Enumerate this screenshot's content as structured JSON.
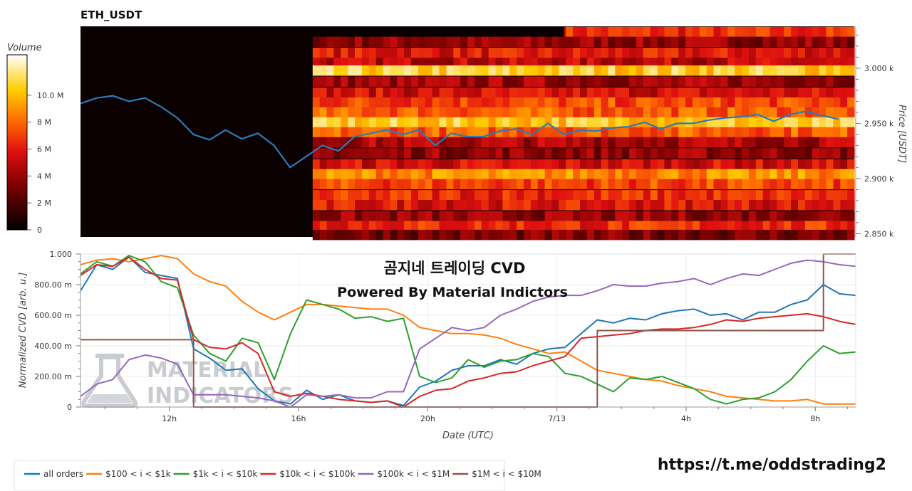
{
  "chart_data": [
    {
      "type": "heatmap",
      "title": "ETH_USDT",
      "ylabel": "Price [USDT]",
      "y_ticks": [
        {
          "value": 3000,
          "label": "3.000 k"
        },
        {
          "value": 2950,
          "label": "2.950 k"
        },
        {
          "value": 2900,
          "label": "2.900 k"
        },
        {
          "value": 2850,
          "label": "2.850 k"
        }
      ],
      "ylim": [
        2847,
        3038
      ],
      "colorbar": {
        "title": "Volume",
        "range": [
          0,
          13
        ],
        "ticks": [
          {
            "value": 0,
            "label": "0"
          },
          {
            "value": 2,
            "label": "2 M"
          },
          {
            "value": 4,
            "label": "4 M"
          },
          {
            "value": 6,
            "label": "6 M"
          },
          {
            "value": 8,
            "label": "8 M"
          },
          {
            "value": 10,
            "label": "10.0 M"
          }
        ]
      },
      "price_line": {
        "color": "#2b7bba",
        "x_hours": [
          0,
          0.5,
          1,
          1.5,
          2,
          2.5,
          3,
          3.5,
          4,
          4.5,
          5,
          5.5,
          6,
          6.5,
          7,
          7.5,
          8,
          8.5,
          9,
          9.5,
          10,
          10.5,
          11,
          11.5,
          12,
          12.5,
          13,
          13.5,
          14,
          14.5,
          15,
          15.5,
          16,
          16.5,
          17,
          17.5,
          18,
          18.5,
          19,
          19.5,
          20,
          20.5,
          21,
          21.5,
          22,
          22.5,
          23,
          23.5
        ],
        "y": [
          2968,
          2973,
          2975,
          2970,
          2973,
          2965,
          2955,
          2940,
          2935,
          2944,
          2936,
          2941,
          2930,
          2910,
          2920,
          2930,
          2925,
          2938,
          2941,
          2944,
          2940,
          2944,
          2930,
          2941,
          2938,
          2938,
          2943,
          2945,
          2940,
          2950,
          2940,
          2944,
          2943,
          2946,
          2947,
          2951,
          2945,
          2950,
          2950,
          2953,
          2955,
          2956,
          2958,
          2952,
          2958,
          2961,
          2957,
          2954
        ]
      },
      "book_levels": [
        {
          "price": 3033,
          "intensity": 0.5,
          "start_hour": 15
        },
        {
          "price": 3024,
          "intensity": 0.3,
          "start_hour": 7.2
        },
        {
          "price": 3014,
          "intensity": 0.45,
          "start_hour": 7.2
        },
        {
          "price": 3005,
          "intensity": 0.38,
          "start_hour": 7.2
        },
        {
          "price": 2998,
          "intensity": 0.82,
          "start_hour": 7.2
        },
        {
          "price": 2988,
          "intensity": 0.32,
          "start_hour": 7.2
        },
        {
          "price": 2978,
          "intensity": 0.42,
          "start_hour": 7.2
        },
        {
          "price": 2969,
          "intensity": 0.55,
          "start_hour": 7.2
        },
        {
          "price": 2960,
          "intensity": 0.6,
          "start_hour": 7.2
        },
        {
          "price": 2951,
          "intensity": 0.8,
          "start_hour": 7.2
        },
        {
          "price": 2942,
          "intensity": 0.6,
          "start_hour": 7.2
        },
        {
          "price": 2933,
          "intensity": 0.35,
          "start_hour": 7.2
        },
        {
          "price": 2923,
          "intensity": 0.3,
          "start_hour": 7.2
        },
        {
          "price": 2913,
          "intensity": 0.42,
          "start_hour": 7.2
        },
        {
          "price": 2904,
          "intensity": 0.68,
          "start_hour": 7.2
        },
        {
          "price": 2895,
          "intensity": 0.55,
          "start_hour": 7.2
        },
        {
          "price": 2885,
          "intensity": 0.5,
          "start_hour": 7.2
        },
        {
          "price": 2876,
          "intensity": 0.45,
          "start_hour": 7.2
        },
        {
          "price": 2866,
          "intensity": 0.3,
          "start_hour": 7.2
        },
        {
          "price": 2857,
          "intensity": 0.5,
          "start_hour": 7.2
        },
        {
          "price": 2849,
          "intensity": 0.25,
          "start_hour": 7.2
        }
      ]
    },
    {
      "type": "line",
      "ylabel": "Normalized CVD [arb. u.]",
      "xlabel": "Date (UTC)",
      "x_ticks": [
        {
          "hour": 2.75,
          "label": "12h"
        },
        {
          "hour": 6.75,
          "label": "16h"
        },
        {
          "hour": 10.75,
          "label": "20h"
        },
        {
          "hour": 14.75,
          "label": "7/13"
        },
        {
          "hour": 18.75,
          "label": "4h"
        },
        {
          "hour": 22.75,
          "label": "8h"
        }
      ],
      "y_ticks": [
        {
          "value": 0,
          "label": "0"
        },
        {
          "value": 0.2,
          "label": "200.00 m"
        },
        {
          "value": 0.4,
          "label": "400.00 m"
        },
        {
          "value": 0.6,
          "label": "600.00 m"
        },
        {
          "value": 0.8,
          "label": "800.00 m"
        },
        {
          "value": 1.0,
          "label": "1.000"
        }
      ],
      "xlim": [
        0,
        24
      ],
      "ylim": [
        0,
        1
      ],
      "x": [
        0,
        0.5,
        1,
        1.5,
        2,
        2.5,
        3,
        3.5,
        4,
        4.5,
        5,
        5.5,
        6,
        6.5,
        7,
        7.5,
        8,
        8.5,
        9,
        9.5,
        10,
        10.5,
        11,
        11.5,
        12,
        12.5,
        13,
        13.5,
        14,
        14.5,
        15,
        15.5,
        16,
        16.5,
        17,
        17.5,
        18,
        18.5,
        19,
        19.5,
        20,
        20.5,
        21,
        21.5,
        22,
        22.5,
        23,
        23.5,
        24
      ],
      "series": [
        {
          "name": "all orders",
          "color": "#1f77b4",
          "values": [
            0.76,
            0.93,
            0.9,
            0.98,
            0.88,
            0.86,
            0.84,
            0.38,
            0.32,
            0.24,
            0.25,
            0.12,
            0.04,
            0.02,
            0.11,
            0.05,
            0.08,
            0.04,
            0.03,
            0.04,
            0.01,
            0.13,
            0.17,
            0.24,
            0.27,
            0.27,
            0.31,
            0.28,
            0.35,
            0.38,
            0.39,
            0.48,
            0.57,
            0.55,
            0.58,
            0.57,
            0.61,
            0.63,
            0.64,
            0.6,
            0.61,
            0.57,
            0.62,
            0.62,
            0.67,
            0.7,
            0.8,
            0.74,
            0.73
          ]
        },
        {
          "name": "$100 < i < $1k",
          "color": "#ff7f0e",
          "values": [
            0.93,
            0.96,
            0.97,
            0.95,
            0.97,
            0.99,
            0.97,
            0.87,
            0.82,
            0.79,
            0.69,
            0.62,
            0.57,
            0.62,
            0.67,
            0.67,
            0.66,
            0.65,
            0.64,
            0.64,
            0.6,
            0.52,
            0.5,
            0.48,
            0.48,
            0.47,
            0.45,
            0.41,
            0.38,
            0.35,
            0.36,
            0.3,
            0.24,
            0.22,
            0.2,
            0.18,
            0.17,
            0.14,
            0.12,
            0.1,
            0.07,
            0.06,
            0.05,
            0.04,
            0.04,
            0.05,
            0.02,
            0.02,
            0.02
          ]
        },
        {
          "name": "$1k < i < $10k",
          "color": "#2ca02c",
          "values": [
            0.87,
            0.95,
            0.92,
            0.99,
            0.95,
            0.82,
            0.78,
            0.47,
            0.35,
            0.3,
            0.45,
            0.42,
            0.18,
            0.48,
            0.7,
            0.67,
            0.64,
            0.58,
            0.59,
            0.56,
            0.58,
            0.2,
            0.16,
            0.19,
            0.31,
            0.26,
            0.3,
            0.31,
            0.35,
            0.33,
            0.22,
            0.2,
            0.15,
            0.1,
            0.19,
            0.18,
            0.2,
            0.16,
            0.12,
            0.05,
            0.02,
            0.05,
            0.06,
            0.1,
            0.18,
            0.3,
            0.4,
            0.35,
            0.36
          ]
        },
        {
          "name": "$10k < i < $100k",
          "color": "#d62728",
          "values": [
            0.86,
            0.93,
            0.92,
            0.98,
            0.9,
            0.84,
            0.83,
            0.44,
            0.39,
            0.38,
            0.42,
            0.35,
            0.1,
            0.07,
            0.09,
            0.07,
            0.05,
            0.04,
            0.03,
            0.04,
            0.0,
            0.07,
            0.11,
            0.12,
            0.17,
            0.19,
            0.22,
            0.23,
            0.27,
            0.3,
            0.33,
            0.45,
            0.46,
            0.47,
            0.48,
            0.5,
            0.51,
            0.51,
            0.52,
            0.54,
            0.57,
            0.56,
            0.58,
            0.59,
            0.6,
            0.61,
            0.59,
            0.56,
            0.54
          ]
        },
        {
          "name": "$100k < i < $1M",
          "color": "#9467bd",
          "values": [
            0.07,
            0.15,
            0.18,
            0.31,
            0.34,
            0.32,
            0.28,
            0.08,
            0.08,
            0.08,
            0.07,
            0.06,
            0.04,
            0.0,
            0.08,
            0.07,
            0.08,
            0.06,
            0.06,
            0.1,
            0.1,
            0.38,
            0.45,
            0.52,
            0.5,
            0.52,
            0.6,
            0.64,
            0.69,
            0.72,
            0.73,
            0.73,
            0.76,
            0.8,
            0.79,
            0.79,
            0.81,
            0.82,
            0.84,
            0.8,
            0.84,
            0.87,
            0.86,
            0.9,
            0.94,
            0.96,
            0.95,
            0.93,
            0.92
          ]
        },
        {
          "name": "$1M < i < $10M",
          "color": "#8c564b",
          "values": [
            0.44,
            0.44,
            0.44,
            0.44,
            0.44,
            0.44,
            0.44,
            0.0,
            0.0,
            0.0,
            0.0,
            0.0,
            0.0,
            0.0,
            0.0,
            0.0,
            0.0,
            0.0,
            0.0,
            0.0,
            0.0,
            0.0,
            0.0,
            0.0,
            0.0,
            0.0,
            0.0,
            0.0,
            0.0,
            0.0,
            0.0,
            0.0,
            0.5,
            0.5,
            0.5,
            0.5,
            0.5,
            0.5,
            0.5,
            0.5,
            0.5,
            0.5,
            0.5,
            0.5,
            0.5,
            0.5,
            1.0,
            1.0,
            1.0
          ]
        }
      ],
      "step_series": "$1M < i < $10M"
    }
  ],
  "overlay": {
    "title": "곰지네 트레이딩 CVD",
    "subtitle": "Powered By Material Indictors"
  },
  "watermark": {
    "line1": "MATERIAL",
    "line2": "INDICATORS"
  },
  "footer_link": "https://t.me/oddstrading2"
}
